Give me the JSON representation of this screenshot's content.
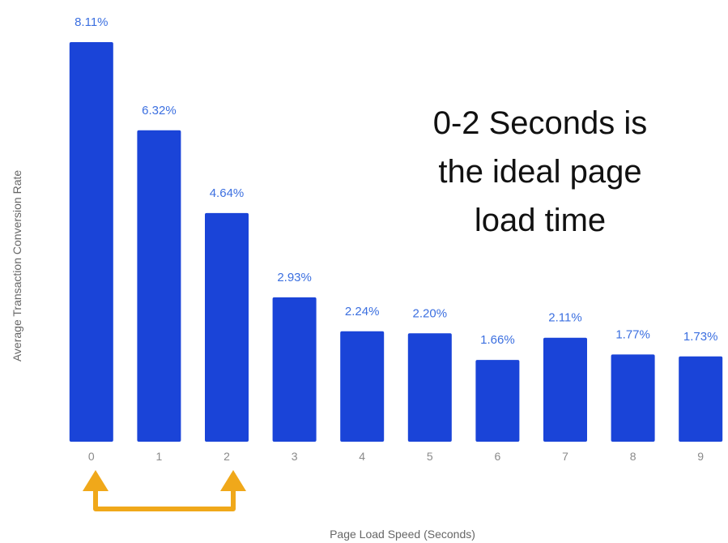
{
  "colors": {
    "bar": "#1a44d8",
    "value_label": "#3b6fe0",
    "tick_label": "#8a8a8a",
    "axis_title": "#666666",
    "annotation": "#111111",
    "arrow": "#f0a81a"
  },
  "annotation_lines": [
    "0-2 Seconds is",
    "the ideal page",
    "load time"
  ],
  "bracket_arrow": {
    "from_category": "0",
    "to_category": "2"
  },
  "chart_data": {
    "type": "bar",
    "categories": [
      "0",
      "1",
      "2",
      "3",
      "4",
      "5",
      "6",
      "7",
      "8",
      "9"
    ],
    "values": [
      8.11,
      6.32,
      4.64,
      2.93,
      2.24,
      2.2,
      1.66,
      2.11,
      1.77,
      1.73
    ],
    "value_labels": [
      "8.11%",
      "6.32%",
      "4.64%",
      "2.93%",
      "2.24%",
      "2.20%",
      "1.66%",
      "2.11%",
      "1.77%",
      "1.73%"
    ],
    "xlabel": "Page Load Speed (Seconds)",
    "ylabel": "Average Transaction Conversion Rate",
    "ylim": [
      0,
      8.11
    ],
    "grid": false,
    "legend": "none"
  }
}
